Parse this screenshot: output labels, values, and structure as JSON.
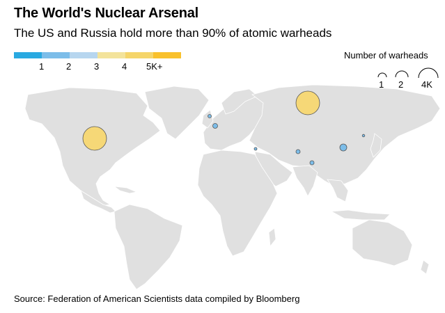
{
  "header": {
    "title": "The World's Nuclear Arsenal",
    "subtitle": "The US and Russia hold more than 90% of atomic warheads"
  },
  "color_legend": {
    "swatches": [
      "#29a9e1",
      "#7cbde9",
      "#b7d6ef",
      "#f3e39b",
      "#f5d56a",
      "#f9c12c"
    ],
    "labels": [
      "1",
      "2",
      "3",
      "4",
      "5K+"
    ]
  },
  "size_legend": {
    "title": "Number of warheads",
    "labels": [
      "1",
      "2",
      "4K"
    ]
  },
  "map": {
    "land_color": "#e0e0e0",
    "border_color": "#ffffff",
    "bubbles": [
      {
        "location": "Russia",
        "fill": "#f6d877"
      },
      {
        "location": "United States",
        "fill": "#f6d877"
      },
      {
        "location": "China",
        "fill": "#7cbde9"
      },
      {
        "location": "France",
        "fill": "#7cbde9"
      },
      {
        "location": "United Kingdom",
        "fill": "#7cbde9"
      },
      {
        "location": "Israel",
        "fill": "#7cbde9"
      },
      {
        "location": "Pakistan",
        "fill": "#7cbde9"
      },
      {
        "location": "India",
        "fill": "#7cbde9"
      },
      {
        "location": "North Korea",
        "fill": "#7cbde9"
      }
    ]
  },
  "footer": {
    "source": "Source: Federation of American Scientists data compiled by Bloomberg"
  }
}
